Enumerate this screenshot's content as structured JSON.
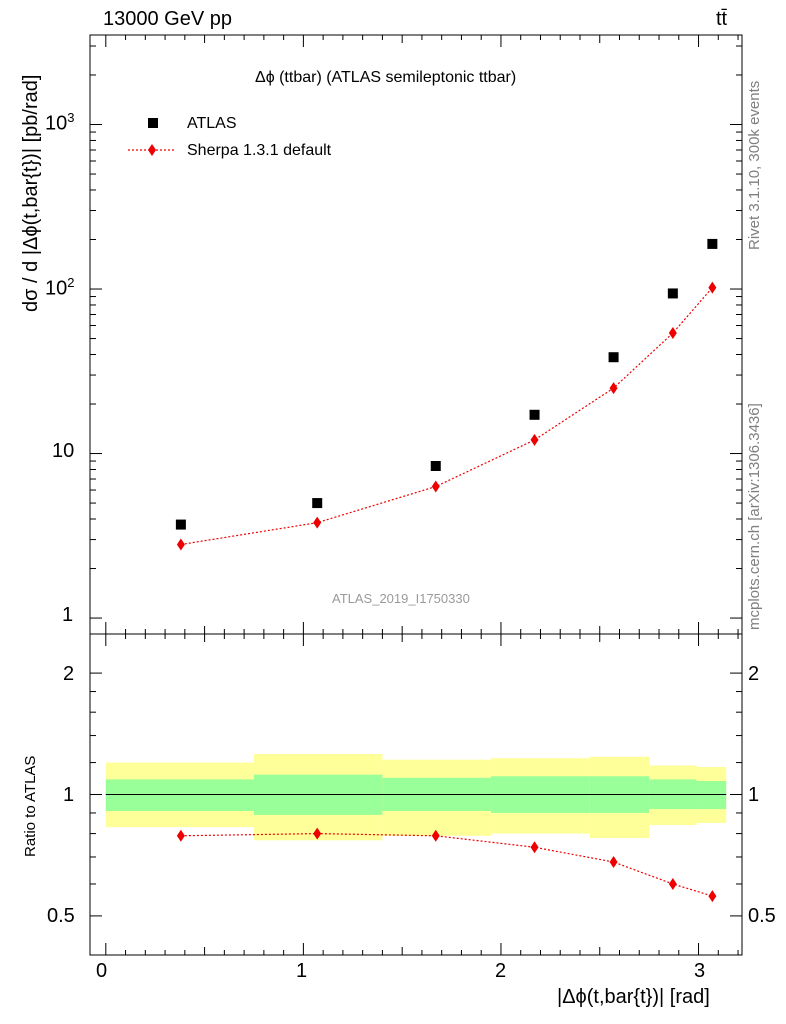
{
  "header": {
    "left": "13000 GeV pp",
    "right": "tt̄"
  },
  "side_labels": {
    "rivet": "Rivet 3.1.10,  300k events",
    "mcplots": "mcplots.cern.ch [arXiv:1306.3436]"
  },
  "main_panel": {
    "title": "Δϕ (ttbar) (ATLAS semileptonic ttbar)",
    "ylabel": "dσ / d |Δϕ(t,bar{t})| [pb/rad]",
    "watermark": "ATLAS_2019_I1750330",
    "ytick_labels": {
      "t1": "1",
      "t10": "10",
      "t100_base": "10",
      "t100_exp": "2",
      "t1000_base": "10",
      "t1000_exp": "3"
    },
    "legend": [
      {
        "label": "ATLAS",
        "marker": "square",
        "color": "#000000"
      },
      {
        "label": "Sherpa 1.3.1 default",
        "marker": "diamond",
        "color": "#ee0000"
      }
    ]
  },
  "ratio_panel": {
    "ylabel": "Ratio to ATLAS",
    "ytick_labels": [
      "0.5",
      "1",
      "2"
    ]
  },
  "xaxis": {
    "label": "|Δϕ(t,bar{t})| [rad]",
    "tick_labels": [
      "0",
      "1",
      "2",
      "3"
    ]
  },
  "chart_data": {
    "type": "scatter",
    "x_range": [
      -0.08,
      3.22
    ],
    "main_ylim": [
      0.8,
      3500
    ],
    "main_yscale": "log",
    "ratio_ylim": [
      0.4,
      2.5
    ],
    "ratio_yscale": "log",
    "bins": [
      {
        "lo": 0.0,
        "hi": 0.75
      },
      {
        "lo": 0.75,
        "hi": 1.4
      },
      {
        "lo": 1.4,
        "hi": 1.95
      },
      {
        "lo": 1.95,
        "hi": 2.45
      },
      {
        "lo": 2.45,
        "hi": 2.75
      },
      {
        "lo": 2.75,
        "hi": 2.99
      },
      {
        "lo": 2.99,
        "hi": 3.14
      }
    ],
    "x": [
      0.38,
      1.07,
      1.67,
      2.17,
      2.57,
      2.87,
      3.07
    ],
    "series": [
      {
        "name": "ATLAS",
        "color": "#000000",
        "values": [
          3.7,
          5.0,
          8.4,
          17.2,
          38.5,
          94.0,
          188.0
        ]
      },
      {
        "name": "Sherpa 1.3.1 default",
        "color": "#ee0000",
        "values": [
          2.8,
          3.8,
          6.3,
          12.1,
          25.0,
          54.0,
          102.0
        ]
      }
    ],
    "ratio": {
      "sherpa": [
        0.79,
        0.8,
        0.79,
        0.74,
        0.68,
        0.6,
        0.56
      ],
      "band_inner": [
        {
          "lo": 0.91,
          "hi": 1.09
        },
        {
          "lo": 0.89,
          "hi": 1.12
        },
        {
          "lo": 0.91,
          "hi": 1.1
        },
        {
          "lo": 0.9,
          "hi": 1.11
        },
        {
          "lo": 0.9,
          "hi": 1.11
        },
        {
          "lo": 0.92,
          "hi": 1.09
        },
        {
          "lo": 0.92,
          "hi": 1.08
        }
      ],
      "band_outer": [
        {
          "lo": 0.83,
          "hi": 1.2
        },
        {
          "lo": 0.77,
          "hi": 1.26
        },
        {
          "lo": 0.79,
          "hi": 1.22
        },
        {
          "lo": 0.8,
          "hi": 1.23
        },
        {
          "lo": 0.78,
          "hi": 1.24
        },
        {
          "lo": 0.84,
          "hi": 1.18
        },
        {
          "lo": 0.85,
          "hi": 1.17
        }
      ],
      "inner_color": "#99ff99",
      "outer_color": "#ffff99"
    }
  }
}
